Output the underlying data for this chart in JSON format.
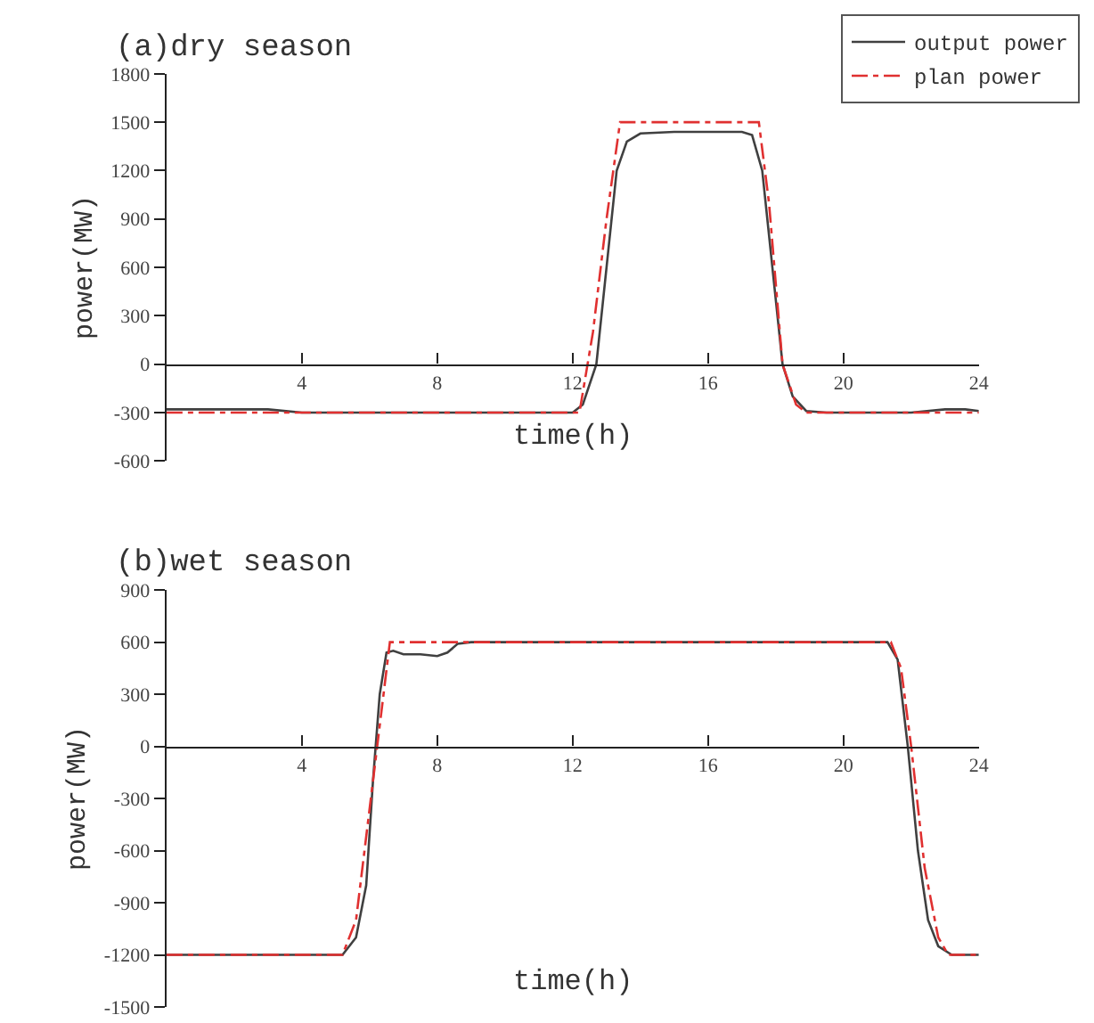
{
  "chart_data": [
    {
      "type": "line",
      "title": "(a)dry season",
      "xlabel": "time(h)",
      "ylabel": "power(MW)",
      "xlim": [
        0,
        24
      ],
      "xticks": [
        4,
        8,
        12,
        16,
        20,
        24
      ],
      "ylim": [
        -600,
        1800
      ],
      "yticks": [
        -600,
        -300,
        0,
        300,
        600,
        900,
        1200,
        1500,
        1800
      ],
      "grid": false,
      "legend": "top right",
      "marker": "none",
      "series": [
        {
          "name": "output power",
          "color": "#404040",
          "line_style": "solid",
          "x": [
            0,
            1,
            3,
            4,
            8,
            12,
            12.3,
            12.7,
            13,
            13.3,
            13.6,
            14,
            15,
            17,
            17.3,
            17.6,
            17.9,
            18.2,
            18.5,
            18.9,
            19.5,
            22,
            23,
            23.6,
            24
          ],
          "values": [
            -280,
            -280,
            -280,
            -300,
            -300,
            -300,
            -250,
            0,
            600,
            1200,
            1380,
            1430,
            1440,
            1440,
            1420,
            1200,
            600,
            0,
            -200,
            -290,
            -300,
            -300,
            -280,
            -280,
            -290
          ]
        },
        {
          "name": "plan power",
          "color": "#e03030",
          "line_style": "dashed",
          "x": [
            0,
            4,
            8,
            12.2,
            12.6,
            13,
            13.4,
            17.5,
            17.8,
            18.2,
            18.6,
            18.9,
            24
          ],
          "values": [
            -300,
            -300,
            -300,
            -300,
            200,
            900,
            1500,
            1500,
            1000,
            0,
            -250,
            -300,
            -300
          ]
        }
      ]
    },
    {
      "type": "line",
      "title": "(b)wet season",
      "xlabel": "time(h)",
      "ylabel": "power(MW)",
      "xlim": [
        0,
        24
      ],
      "xticks": [
        4,
        8,
        12,
        16,
        20,
        24
      ],
      "ylim": [
        -1500,
        900
      ],
      "yticks": [
        -1500,
        -1200,
        -900,
        -600,
        -300,
        0,
        300,
        600,
        900
      ],
      "grid": false,
      "legend": false,
      "marker": "none",
      "series": [
        {
          "color": "#404040",
          "line_style": "solid",
          "x": [
            0,
            5.2,
            5.6,
            5.9,
            6.1,
            6.3,
            6.5,
            6.7,
            7,
            7.5,
            8,
            8.3,
            8.6,
            9,
            21.3,
            21.6,
            21.9,
            22.2,
            22.5,
            22.8,
            23.2,
            24
          ],
          "values": [
            -1200,
            -1200,
            -1100,
            -800,
            -200,
            300,
            540,
            550,
            530,
            530,
            520,
            540,
            590,
            600,
            600,
            500,
            0,
            -600,
            -1000,
            -1150,
            -1200,
            -1200
          ]
        },
        {
          "color": "#e03030",
          "line_style": "dashed",
          "x": [
            0,
            5.2,
            5.6,
            6.1,
            6.6,
            21.4,
            21.7,
            22.0,
            22.4,
            22.8,
            23.1,
            24
          ],
          "values": [
            -1200,
            -1200,
            -1000,
            -200,
            600,
            600,
            450,
            0,
            -700,
            -1100,
            -1200,
            -1200
          ]
        }
      ]
    }
  ]
}
